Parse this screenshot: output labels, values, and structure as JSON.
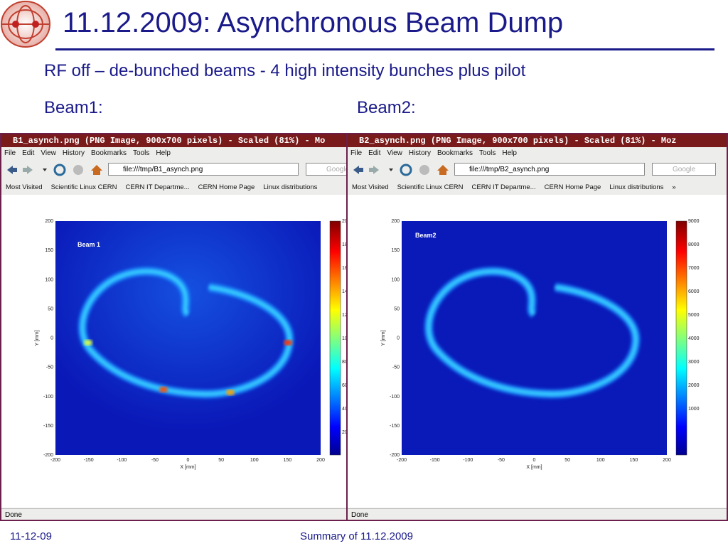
{
  "header": {
    "title": "11.12.2009: Asynchronous Beam Dump",
    "subtitle": "RF off – de-bunched beams - 4 high intensity bunches plus pilot"
  },
  "panels": [
    {
      "label": "Beam1:",
      "window": {
        "title": "B1_asynch.png (PNG Image, 900x700 pixels) - Scaled (81%) - Mo",
        "menu": [
          "File",
          "Edit",
          "View",
          "History",
          "Bookmarks",
          "Tools",
          "Help"
        ],
        "url": "file:///tmp/B1_asynch.png",
        "search": "Google",
        "bookmarks": [
          "Most Visited",
          "Scientific Linux CERN",
          "CERN IT Departme...",
          "CERN Home Page",
          "Linux distributions"
        ],
        "status": "Done",
        "plot": {
          "label": "Beam 1",
          "xlabel": "X [mm]",
          "ylabel": "Y [mm]",
          "xticks": [
            -200,
            -150,
            -100,
            -50,
            0,
            50,
            100,
            150,
            200
          ],
          "yticks": [
            200,
            150,
            100,
            50,
            0,
            -50,
            -100,
            -150,
            -200
          ],
          "colorbar": [
            20,
            18,
            16,
            14,
            12,
            10,
            80,
            60,
            40,
            20
          ]
        }
      }
    },
    {
      "label": "Beam2:",
      "window": {
        "title": "B2_asynch.png (PNG Image, 900x700 pixels) - Scaled (81%) - Moz",
        "menu": [
          "File",
          "Edit",
          "View",
          "History",
          "Bookmarks",
          "Tools",
          "Help"
        ],
        "url": "file:///tmp/B2_asynch.png",
        "search": "Google",
        "bookmarks": [
          "Most Visited",
          "Scientific Linux CERN",
          "CERN IT Departme...",
          "CERN Home Page",
          "Linux distributions",
          "»"
        ],
        "status": "Done",
        "plot": {
          "label": "Beam2",
          "xlabel": "X [mm]",
          "ylabel": "Y [mm]",
          "xticks": [
            -200,
            -150,
            -100,
            -50,
            0,
            50,
            100,
            150,
            200
          ],
          "yticks": [
            200,
            150,
            100,
            50,
            0,
            -50,
            -100,
            -150,
            -200
          ],
          "colorbar": [
            9000,
            8000,
            7000,
            6000,
            5000,
            4000,
            3000,
            2000,
            1000
          ]
        }
      }
    }
  ],
  "footer": {
    "date": "11-12-09",
    "summary": "Summary of 11.12.2009"
  }
}
